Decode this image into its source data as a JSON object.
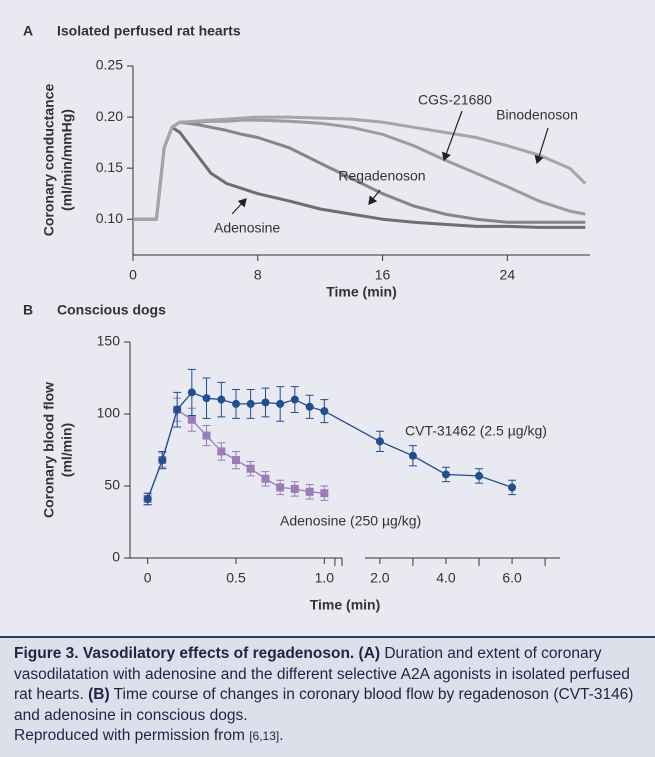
{
  "chart_data": [
    {
      "type": "line",
      "panel": "A",
      "title": "Isolated perfused rat hearts",
      "xlabel": "Time (min)",
      "ylabel": [
        "Coronary conductance",
        "(ml/min/mmHg)"
      ],
      "xlim": [
        0,
        29.3
      ],
      "ylim": [
        0.065,
        0.25
      ],
      "xticks": [
        0,
        8,
        16,
        24
      ],
      "yticks": [
        {
          "value": 0.1,
          "label": "0.10"
        },
        0.15,
        {
          "value": 0.2,
          "label": "0.20"
        },
        0.25
      ],
      "x": [
        0,
        1,
        1.5,
        2,
        2.5,
        3,
        4,
        5,
        6,
        7,
        8,
        10,
        12,
        14,
        16,
        18,
        20,
        22,
        24,
        26,
        28,
        29
      ],
      "series": [
        {
          "name": "Adenosine",
          "color": "#6e6e6e",
          "values": [
            0.1,
            0.1,
            0.1,
            0.17,
            0.19,
            0.185,
            0.165,
            0.145,
            0.135,
            0.13,
            0.125,
            0.118,
            0.11,
            0.105,
            0.1,
            0.097,
            0.095,
            0.093,
            0.093,
            0.092,
            0.092,
            0.092
          ]
        },
        {
          "name": "Regadenoson",
          "color": "#858585",
          "values": [
            0.1,
            0.1,
            0.1,
            0.17,
            0.19,
            0.195,
            0.193,
            0.19,
            0.187,
            0.183,
            0.18,
            0.17,
            0.155,
            0.14,
            0.125,
            0.113,
            0.105,
            0.1,
            0.097,
            0.097,
            0.097,
            0.097
          ]
        },
        {
          "name": "CGS-21680",
          "color": "#9c9c9c",
          "values": [
            0.1,
            0.1,
            0.1,
            0.17,
            0.19,
            0.195,
            0.195,
            0.196,
            0.196,
            0.197,
            0.197,
            0.196,
            0.194,
            0.19,
            0.183,
            0.172,
            0.158,
            0.145,
            0.132,
            0.118,
            0.108,
            0.105
          ]
        },
        {
          "name": "Binodenoson",
          "color": "#a6a6a6",
          "values": [
            0.1,
            0.1,
            0.1,
            0.17,
            0.19,
            0.195,
            0.196,
            0.197,
            0.198,
            0.199,
            0.2,
            0.2,
            0.199,
            0.198,
            0.195,
            0.19,
            0.185,
            0.18,
            0.172,
            0.163,
            0.15,
            0.135
          ]
        }
      ]
    },
    {
      "type": "line",
      "panel": "B",
      "title": "Conscious dogs",
      "xlabel": "Time (min)",
      "ylabel": [
        "Coronary blood flow",
        "(ml/min)"
      ],
      "x_segments": [
        {
          "xlim": [
            -0.1,
            1.1
          ]
        },
        {
          "xlim": [
            1.55,
            7.45
          ]
        }
      ],
      "ylim": [
        0,
        150
      ],
      "xticks": [
        0,
        0.5,
        {
          "value": 1,
          "label": "1.0"
        },
        {
          "value": 2,
          "label": "2.0"
        },
        {
          "value": 4,
          "label": "4.0"
        },
        {
          "value": 6,
          "label": "6.0"
        }
      ],
      "xminorticks": [
        1.06,
        1.1,
        3,
        5,
        7
      ],
      "yticks": [
        0,
        50,
        100,
        150
      ],
      "series": [
        {
          "name": "Adenosine (250 µg/kg)",
          "color": "#9a7cb8",
          "marker": "square",
          "x": [
            0,
            0.083,
            0.167,
            0.25,
            0.333,
            0.417,
            0.5,
            0.583,
            0.667,
            0.75,
            0.833,
            0.917,
            1
          ],
          "values": [
            41,
            68,
            103,
            96,
            85,
            74,
            68,
            62,
            55,
            49,
            48,
            46,
            45
          ],
          "errors": [
            4,
            5,
            8,
            8,
            7,
            6,
            6,
            5,
            5,
            5,
            5,
            5,
            5
          ]
        },
        {
          "name": "CVT-31462 (2.5 µg/kg)",
          "color": "#1f4f8f",
          "marker": "circle",
          "x": [
            0,
            0.083,
            0.167,
            0.25,
            0.333,
            0.417,
            0.5,
            0.583,
            0.667,
            0.75,
            0.833,
            0.917,
            1,
            2,
            3,
            4,
            5,
            6
          ],
          "values": [
            41,
            68,
            103,
            115,
            111,
            110,
            107,
            107,
            108,
            107,
            110,
            105,
            102,
            81,
            71,
            58,
            57,
            49
          ],
          "errors": [
            4,
            6,
            12,
            16,
            14,
            12,
            10,
            10,
            10,
            12,
            9,
            8,
            8,
            7,
            7,
            5,
            5,
            5
          ]
        }
      ]
    }
  ],
  "caption": {
    "paragraphs": [
      [
        {
          "text": "Figure 3. Vasodilatory effects of regadenoson. (A)",
          "bold": true
        },
        {
          "text": " Duration and extent of coronary vasodilatation with adenosine and the different selective A2A agonists in isolated perfused rat hearts. "
        },
        {
          "text": "(B)",
          "bold": true
        },
        {
          "text": " Time course of changes in coronary blood flow by regadenoson (CVT-3146) and adenosine in conscious dogs."
        }
      ],
      [
        {
          "text": "Reproduced with permission from "
        },
        {
          "text": "[6,13]",
          "small": true
        },
        {
          "text": "."
        }
      ]
    ]
  }
}
